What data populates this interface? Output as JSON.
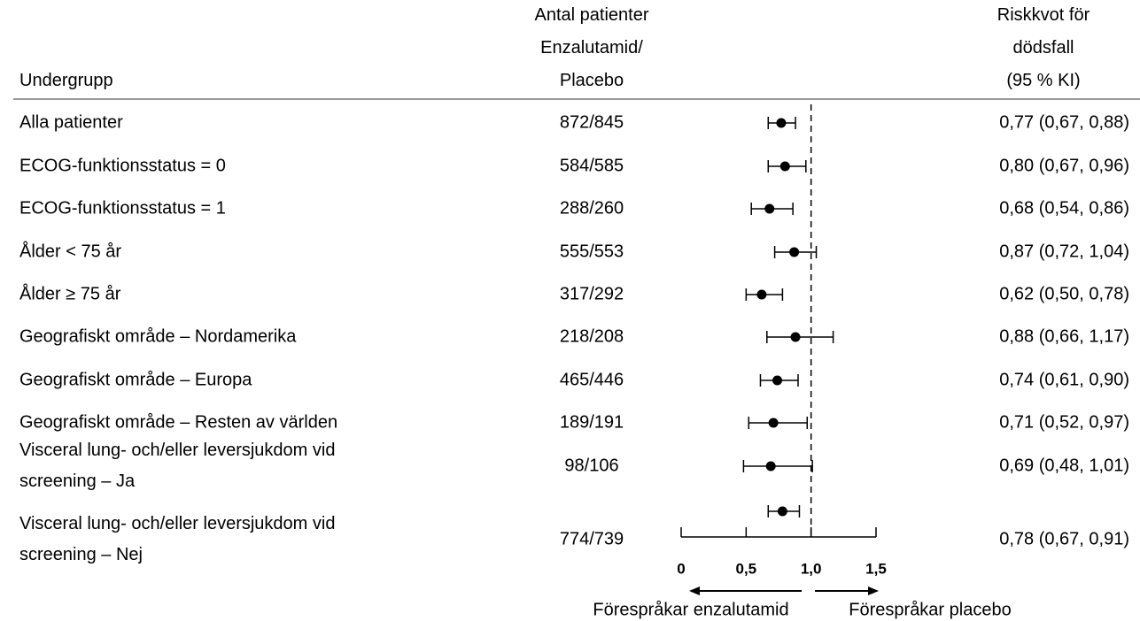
{
  "chart_data": {
    "type": "forest",
    "columns": {
      "subgroup": "Undergrupp",
      "n": "Antal patienter\nEnzalutamid/\nPlacebo",
      "hr": "Riskkvot för\ndödsfall\n(95 % KI)"
    },
    "categories": [
      "Alla patienter",
      "ECOG-funktionsstatus = 0",
      "ECOG-funktionsstatus = 1",
      "Ålder < 75 år",
      "Ålder ≥ 75 år",
      "Geografiskt område – Nordamerika",
      "Geografiskt område – Europa",
      "Geografiskt område – Resten av världen",
      "Visceral lung- och/eller leversjukdom vid\nscreening – Ja",
      "Visceral lung- och/eller leversjukdom vid\nscreening – Nej"
    ],
    "n_labels": [
      "872/845",
      "584/585",
      "288/260",
      "555/553",
      "317/292",
      "218/208",
      "465/446",
      "189/191",
      "98/106",
      "774/739"
    ],
    "values": [
      0.77,
      0.8,
      0.68,
      0.87,
      0.62,
      0.88,
      0.74,
      0.71,
      0.69,
      0.78
    ],
    "lower": [
      0.67,
      0.67,
      0.54,
      0.72,
      0.5,
      0.66,
      0.61,
      0.52,
      0.48,
      0.67
    ],
    "upper": [
      0.88,
      0.96,
      0.86,
      1.04,
      0.78,
      1.17,
      0.9,
      0.97,
      1.01,
      0.91
    ],
    "value_labels": [
      "0,77 (0,67, 0,88)",
      "0,80 (0,67, 0,96)",
      "0,68 (0,54, 0,86)",
      "0,87 (0,72, 1,04)",
      "0,62 (0,50, 0,78)",
      "0,88 (0,66, 1,17)",
      "0,74 (0,61, 0,90)",
      "0,71 (0,52, 0,97)",
      "0,69 (0,48, 1,01)",
      "0,78 (0,67, 0,91)"
    ],
    "color": "#000000",
    "xlim": [
      0,
      1.5
    ],
    "xticks": [
      0,
      {
        "value": 0.5,
        "label": "0,5"
      },
      {
        "value": 1.0,
        "label": "1,0"
      },
      {
        "value": 1.5,
        "label": "1,5"
      }
    ],
    "reference_line": 1.0,
    "favors_left": "Förespråkar enzalutamid",
    "favors_right": "Förespråkar placebo"
  }
}
